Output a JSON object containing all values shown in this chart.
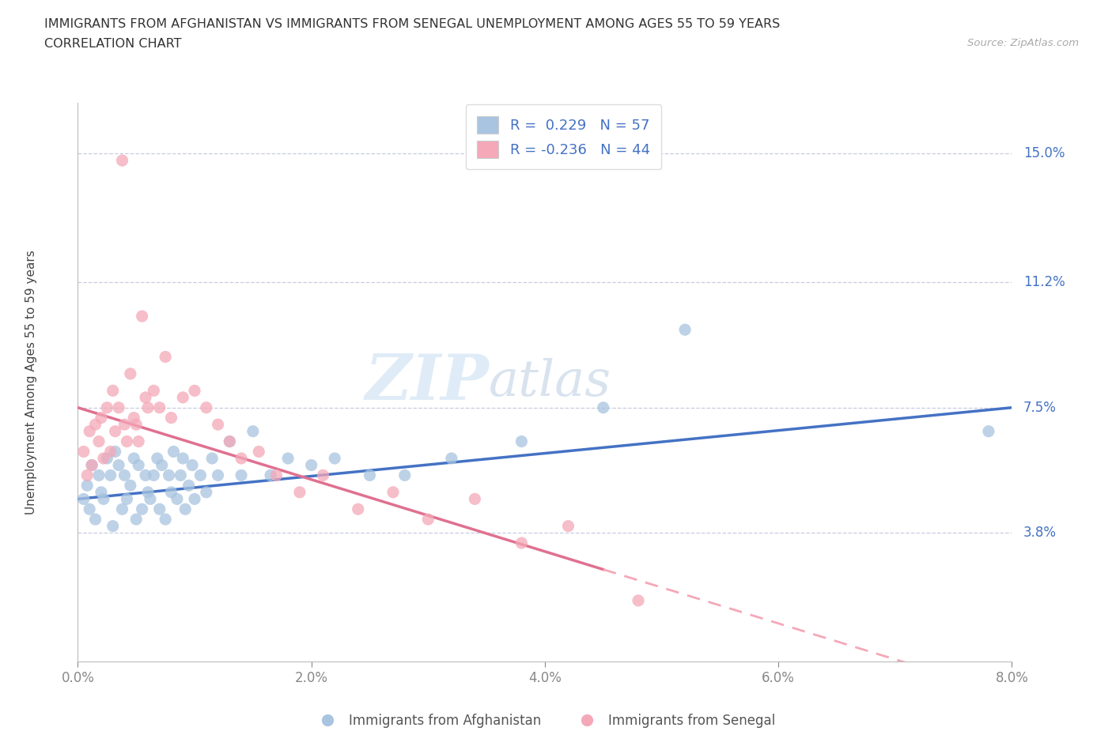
{
  "title_line1": "IMMIGRANTS FROM AFGHANISTAN VS IMMIGRANTS FROM SENEGAL UNEMPLOYMENT AMONG AGES 55 TO 59 YEARS",
  "title_line2": "CORRELATION CHART",
  "source_text": "Source: ZipAtlas.com",
  "ylabel": "Unemployment Among Ages 55 to 59 years",
  "xlabel_ticks": [
    "0.0%",
    "2.0%",
    "4.0%",
    "6.0%",
    "8.0%"
  ],
  "xlabel_values": [
    0.0,
    2.0,
    4.0,
    6.0,
    8.0
  ],
  "ytick_labels": [
    "15.0%",
    "11.2%",
    "7.5%",
    "3.8%"
  ],
  "ytick_values": [
    15.0,
    11.2,
    7.5,
    3.8
  ],
  "xmin": 0.0,
  "xmax": 8.0,
  "ymin": 0.0,
  "ymax": 16.5,
  "afghanistan_color": "#a8c4e0",
  "senegal_color": "#f4a8b8",
  "afghanistan_line_color": "#4472c4",
  "senegal_line_solid_color": "#e07090",
  "senegal_line_dash_color": "#f4a8b8",
  "afghanistan_R": "0.229",
  "afghanistan_N": "57",
  "senegal_R": "-0.236",
  "senegal_N": "44",
  "legend_label_afghanistan": "Immigrants from Afghanistan",
  "legend_label_senegal": "Immigrants from Senegal",
  "watermark_zip": "ZIP",
  "watermark_atlas": "atlas",
  "afghanistan_x": [
    0.05,
    0.08,
    0.1,
    0.12,
    0.15,
    0.18,
    0.2,
    0.22,
    0.25,
    0.28,
    0.3,
    0.32,
    0.35,
    0.38,
    0.4,
    0.42,
    0.45,
    0.48,
    0.5,
    0.52,
    0.55,
    0.58,
    0.6,
    0.62,
    0.65,
    0.68,
    0.7,
    0.72,
    0.75,
    0.78,
    0.8,
    0.82,
    0.85,
    0.88,
    0.9,
    0.92,
    0.95,
    0.98,
    1.0,
    1.05,
    1.1,
    1.15,
    1.2,
    1.3,
    1.4,
    1.5,
    1.65,
    1.8,
    2.0,
    2.2,
    2.5,
    2.8,
    3.2,
    3.8,
    4.5,
    5.2,
    7.8
  ],
  "afghanistan_y": [
    4.8,
    5.2,
    4.5,
    5.8,
    4.2,
    5.5,
    5.0,
    4.8,
    6.0,
    5.5,
    4.0,
    6.2,
    5.8,
    4.5,
    5.5,
    4.8,
    5.2,
    6.0,
    4.2,
    5.8,
    4.5,
    5.5,
    5.0,
    4.8,
    5.5,
    6.0,
    4.5,
    5.8,
    4.2,
    5.5,
    5.0,
    6.2,
    4.8,
    5.5,
    6.0,
    4.5,
    5.2,
    5.8,
    4.8,
    5.5,
    5.0,
    6.0,
    5.5,
    6.5,
    5.5,
    6.8,
    5.5,
    6.0,
    5.8,
    6.0,
    5.5,
    5.5,
    6.0,
    6.5,
    7.5,
    9.8,
    6.8
  ],
  "senegal_x": [
    0.05,
    0.08,
    0.1,
    0.12,
    0.15,
    0.18,
    0.2,
    0.22,
    0.25,
    0.28,
    0.3,
    0.32,
    0.35,
    0.38,
    0.4,
    0.42,
    0.45,
    0.48,
    0.5,
    0.52,
    0.55,
    0.58,
    0.6,
    0.65,
    0.7,
    0.75,
    0.8,
    0.9,
    1.0,
    1.1,
    1.2,
    1.3,
    1.4,
    1.55,
    1.7,
    1.9,
    2.1,
    2.4,
    2.7,
    3.0,
    3.4,
    3.8,
    4.2,
    4.8
  ],
  "senegal_y": [
    6.2,
    5.5,
    6.8,
    5.8,
    7.0,
    6.5,
    7.2,
    6.0,
    7.5,
    6.2,
    8.0,
    6.8,
    7.5,
    14.8,
    7.0,
    6.5,
    8.5,
    7.2,
    7.0,
    6.5,
    10.2,
    7.8,
    7.5,
    8.0,
    7.5,
    9.0,
    7.2,
    7.8,
    8.0,
    7.5,
    7.0,
    6.5,
    6.0,
    6.2,
    5.5,
    5.0,
    5.5,
    4.5,
    5.0,
    4.2,
    4.8,
    3.5,
    4.0,
    1.8
  ],
  "senegal_solid_xmax": 4.5
}
